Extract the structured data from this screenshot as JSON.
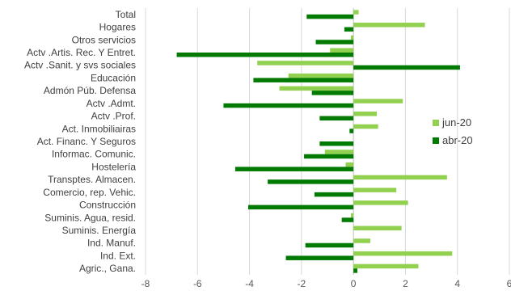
{
  "chart_data": {
    "type": "bar",
    "orientation": "horizontal",
    "categories": [
      "Total",
      "Hogares",
      "Otros servicios",
      "Actv .Artis. Rec. Y Entret.",
      "Actv .Sanit. y svs sociales",
      "Educación",
      "Admón Púb. Defensa",
      "Actv .Admt.",
      "Actv .Prof.",
      "Act. Inmobiliairas",
      "Act. Financ. Y Seguros",
      "Informac. Comunic.",
      "Hostelería",
      "Transptes. Almacen.",
      "Comercio, rep. Vehic.",
      "Construcción",
      "Suminis. Agua, resid.",
      "Suminis. Energía",
      "Ind. Manuf.",
      "Ind. Ext.",
      "Agric., Gana."
    ],
    "series": [
      {
        "name": "jun-20",
        "color": "#92d050",
        "values": [
          0.2,
          2.75,
          -0.1,
          -0.9,
          -3.7,
          -2.5,
          -2.85,
          1.9,
          0.9,
          0.95,
          0.0,
          -1.1,
          -0.3,
          3.6,
          1.65,
          2.1,
          -0.1,
          1.85,
          0.65,
          3.8,
          2.5
        ]
      },
      {
        "name": "abr-20",
        "color": "#007a00",
        "values": [
          -1.8,
          -0.35,
          -1.45,
          -6.8,
          4.1,
          -3.85,
          -1.6,
          -5.0,
          -1.3,
          -0.15,
          -1.3,
          -1.9,
          -4.55,
          -3.3,
          -1.5,
          -4.05,
          -0.45,
          0.0,
          -1.85,
          -2.6,
          0.15
        ]
      }
    ],
    "x_ticks": [
      "-8",
      "-6",
      "-4",
      "-2",
      "0",
      "2",
      "4",
      "6"
    ],
    "xlim": [
      -8,
      6
    ],
    "grid": true,
    "legend_position": "right"
  }
}
